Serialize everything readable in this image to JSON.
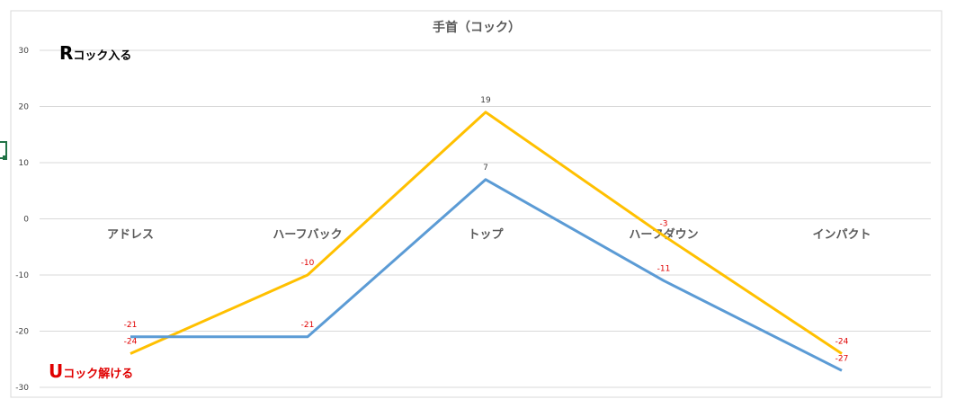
{
  "chart_data": {
    "type": "line",
    "title": "手首（コック）",
    "categories": [
      "アドレス",
      "ハーフバック",
      "トップ",
      "ハーフダウン",
      "インパクト"
    ],
    "ylim": [
      -30,
      30
    ],
    "yticks": [
      30,
      20,
      10,
      0,
      -10,
      -20,
      -30
    ],
    "grid": true,
    "legend": "none",
    "series": [
      {
        "color": "#FFC000",
        "values": [
          -24,
          -10,
          19,
          -3,
          -24
        ],
        "labels": [
          "-24",
          "-10",
          "19",
          "-3",
          "-24"
        ],
        "label_colors": [
          "#E00000",
          "#E00000",
          "#404040",
          "#E00000",
          "#E00000"
        ]
      },
      {
        "color": "#5B9BD5",
        "values": [
          -21,
          -21,
          7,
          -11,
          -27
        ],
        "labels": [
          "-21",
          "-21",
          "7",
          "-11",
          "-27"
        ],
        "label_colors": [
          "#E00000",
          "#E00000",
          "#404040",
          "#E00000",
          "#E00000"
        ]
      }
    ],
    "annotations": {
      "top": {
        "big": "R",
        "small": "コック入る",
        "color": "#000000"
      },
      "bottom": {
        "big": "U",
        "small": "コック解ける",
        "color": "#E00000"
      }
    }
  }
}
